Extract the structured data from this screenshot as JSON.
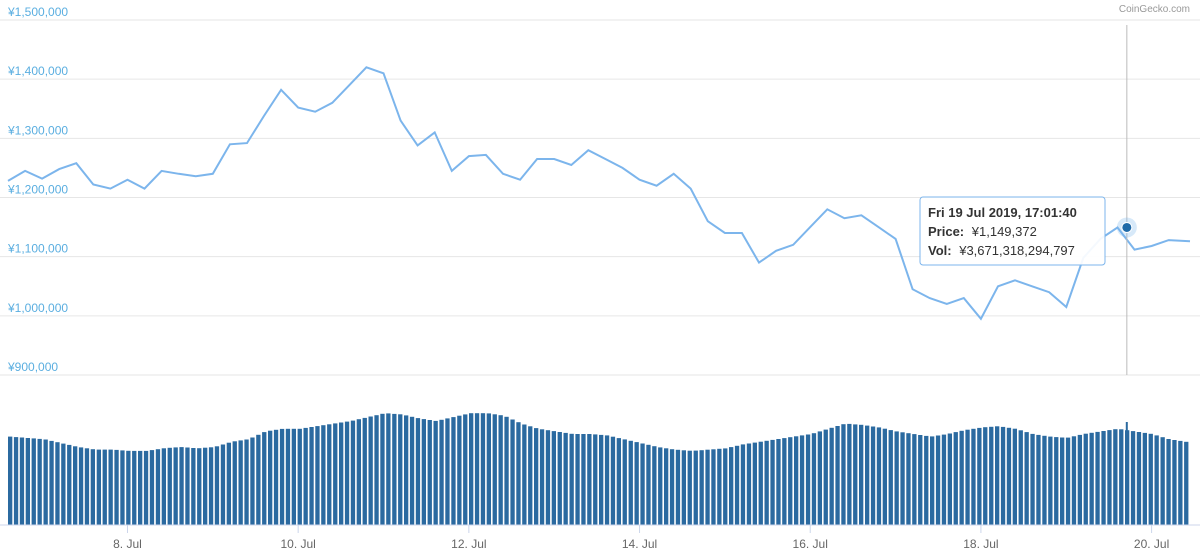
{
  "credit": "CoinGecko.com",
  "colors": {
    "price_line": "#7cb5ec",
    "volume_bar": "#2b6aa0",
    "grid": "#e6e6e6",
    "axis_label": "#5aaee0",
    "x_label": "#666666",
    "crosshair": "#bbbbbb",
    "tooltip_border": "#7cb5ec",
    "marker": "#1f6aa8"
  },
  "tooltip": {
    "date": "Fri 19 Jul 2019, 17:01:40",
    "price_label": "Price:",
    "price_value": "¥1,149,372",
    "vol_label": "Vol:",
    "vol_value": "¥3,671,318,294,797"
  },
  "chart_data": {
    "type": "line",
    "y_axis": {
      "ticks": [
        "¥1,500,000",
        "¥1,400,000",
        "¥1,300,000",
        "¥1,200,000",
        "¥1,100,000",
        "¥1,000,000",
        "¥900,000"
      ],
      "tick_values": [
        1500000,
        1400000,
        1300000,
        1200000,
        1100000,
        1000000,
        900000
      ],
      "ylim": [
        900000,
        1500000
      ]
    },
    "x_axis": {
      "tick_labels": [
        "8. Jul",
        "10. Jul",
        "12. Jul",
        "14. Jul",
        "16. Jul",
        "18. Jul",
        "20. Jul"
      ],
      "tick_days": [
        8,
        10,
        12,
        14,
        16,
        18,
        20
      ],
      "xlim": [
        6.6,
        20.45
      ]
    },
    "grid": true,
    "legend": "none",
    "price_series": {
      "x": [
        6.6,
        6.8,
        7.0,
        7.2,
        7.4,
        7.6,
        7.8,
        8.0,
        8.2,
        8.4,
        8.6,
        8.8,
        9.0,
        9.2,
        9.4,
        9.6,
        9.8,
        10.0,
        10.2,
        10.4,
        10.6,
        10.8,
        11.0,
        11.2,
        11.4,
        11.6,
        11.8,
        12.0,
        12.2,
        12.4,
        12.6,
        12.8,
        13.0,
        13.2,
        13.4,
        13.6,
        13.8,
        14.0,
        14.2,
        14.4,
        14.6,
        14.8,
        15.0,
        15.2,
        15.4,
        15.6,
        15.8,
        16.0,
        16.2,
        16.4,
        16.6,
        16.8,
        17.0,
        17.2,
        17.4,
        17.6,
        17.8,
        18.0,
        18.2,
        18.4,
        18.6,
        18.8,
        19.0,
        19.2,
        19.4,
        19.6,
        19.8,
        20.0,
        20.2,
        20.45
      ],
      "y": [
        1228000,
        1245000,
        1232000,
        1248000,
        1258000,
        1222000,
        1215000,
        1230000,
        1215000,
        1245000,
        1240000,
        1236000,
        1240000,
        1290000,
        1292000,
        1338000,
        1382000,
        1352000,
        1345000,
        1360000,
        1390000,
        1420000,
        1410000,
        1330000,
        1288000,
        1310000,
        1245000,
        1270000,
        1272000,
        1240000,
        1230000,
        1265000,
        1265000,
        1255000,
        1280000,
        1265000,
        1250000,
        1230000,
        1220000,
        1240000,
        1215000,
        1160000,
        1140000,
        1140000,
        1090000,
        1110000,
        1120000,
        1150000,
        1180000,
        1165000,
        1170000,
        1150000,
        1130000,
        1045000,
        1030000,
        1020000,
        1030000,
        995000,
        1050000,
        1060000,
        1050000,
        1040000,
        1015000,
        1098000,
        1130000,
        1149372,
        1112000,
        1118000,
        1128000,
        1126000
      ]
    },
    "volume_series": {
      "note_units": "relative",
      "values": [
        0.68,
        0.67,
        0.66,
        0.63,
        0.6,
        0.58,
        0.58,
        0.57,
        0.57,
        0.59,
        0.6,
        0.59,
        0.6,
        0.64,
        0.66,
        0.72,
        0.74,
        0.74,
        0.76,
        0.78,
        0.8,
        0.83,
        0.86,
        0.85,
        0.82,
        0.8,
        0.83,
        0.86,
        0.86,
        0.84,
        0.78,
        0.74,
        0.72,
        0.7,
        0.7,
        0.69,
        0.66,
        0.63,
        0.6,
        0.58,
        0.57,
        0.58,
        0.59,
        0.62,
        0.64,
        0.66,
        0.68,
        0.7,
        0.74,
        0.78,
        0.77,
        0.75,
        0.72,
        0.7,
        0.68,
        0.7,
        0.73,
        0.75,
        0.76,
        0.74,
        0.7,
        0.68,
        0.67,
        0.7,
        0.72,
        0.74,
        0.72,
        0.7,
        0.66,
        0.64
      ]
    },
    "hover": {
      "x": 19.71,
      "y": 1149372
    }
  }
}
